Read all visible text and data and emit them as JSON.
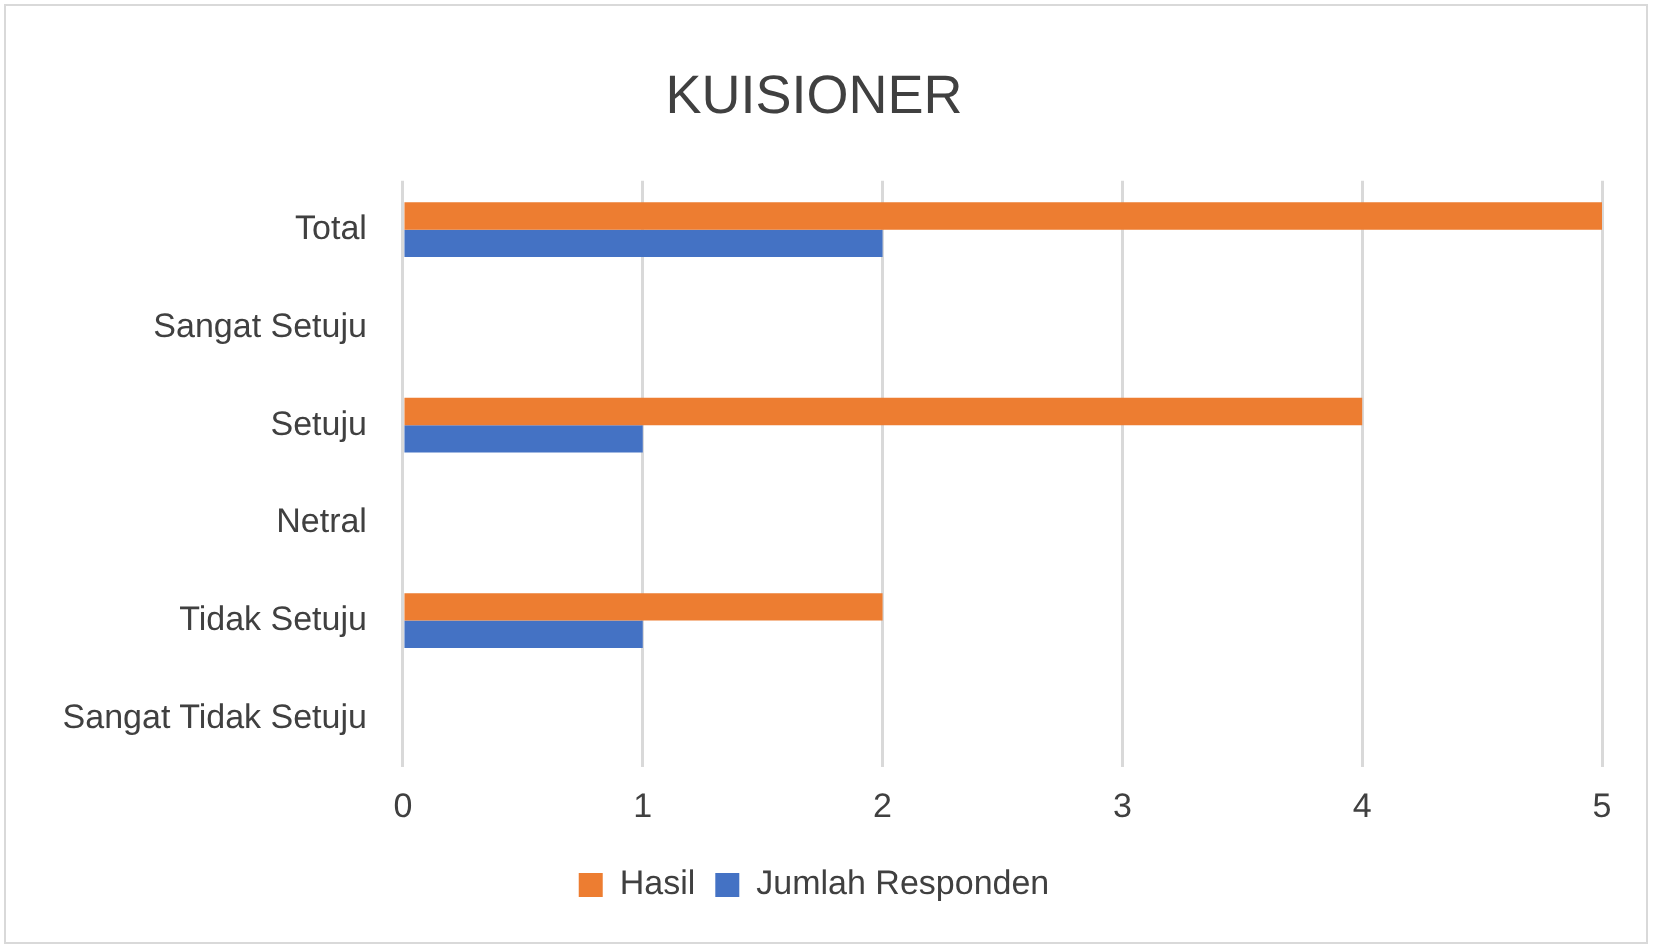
{
  "chart_data": {
    "type": "bar",
    "orientation": "horizontal",
    "title": "KUISIONER",
    "categories": [
      "Total",
      "Sangat Setuju",
      "Setuju",
      "Netral",
      "Tidak Setuju",
      "Sangat Tidak Setuju"
    ],
    "series": [
      {
        "name": "Hasil",
        "color": "#ed7d31",
        "values": [
          5,
          null,
          4,
          null,
          2,
          null
        ]
      },
      {
        "name": "Jumlah Responden",
        "color": "#4472c4",
        "values": [
          2,
          null,
          1,
          null,
          1,
          null
        ]
      }
    ],
    "xlim": [
      0,
      5
    ],
    "xticks": [
      0,
      1,
      2,
      3,
      4,
      5
    ],
    "grid": "x",
    "legend": "bottom"
  }
}
